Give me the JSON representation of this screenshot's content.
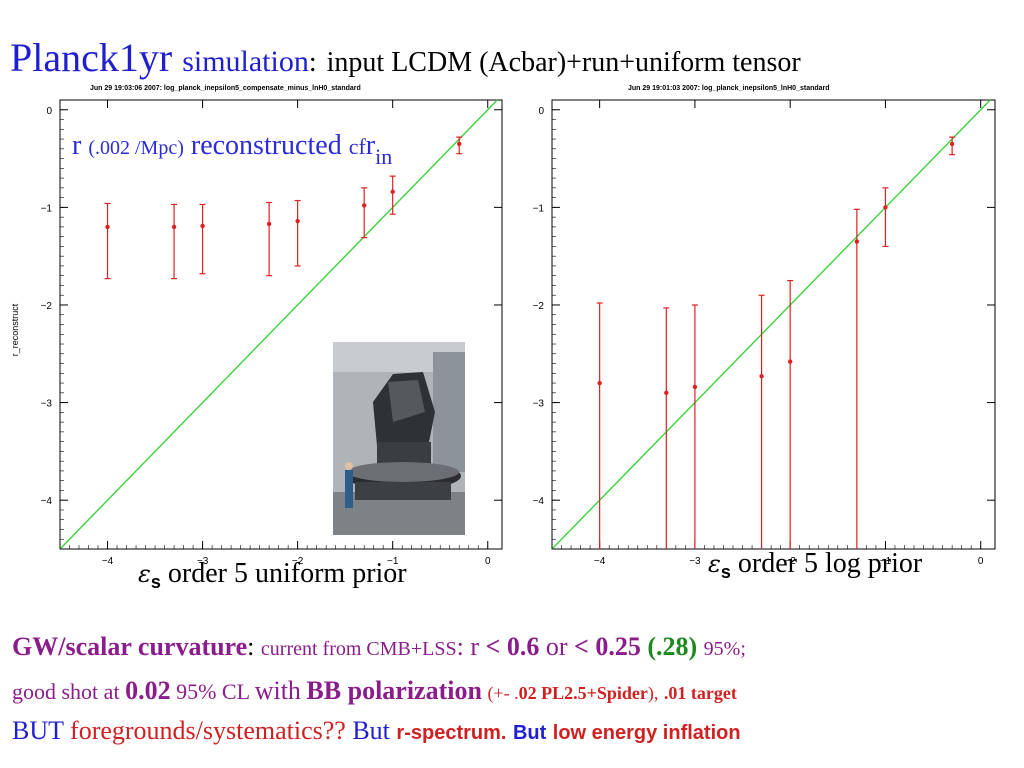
{
  "title": {
    "main": "Planck1yr",
    "sim": "simulation",
    "colon": ":",
    "subtitle": "input LCDM (Acbar)+run+uniform tensor"
  },
  "recon_label": {
    "r": "r",
    "scale": "(.002 /Mpc)",
    "word": "reconstructed",
    "cf": "cf",
    "r_in": "r",
    "sub": "in"
  },
  "photo": {
    "description": "Planck satellite in test facility"
  },
  "prior_left": {
    "eps": "ε",
    "s": "s",
    "text": "order 5 uniform prior"
  },
  "prior_right": {
    "eps": "ε",
    "s": "s",
    "text": "order 5 log prior"
  },
  "chart_data": [
    {
      "type": "scatter",
      "header": "Jun 29 19:03:06 2007: log_planck_inepsilon5_compensate_minus_lnH0_standard",
      "xlabel": "",
      "ylabel": "r_reconstruct",
      "xlim": [
        -4.5,
        0.15
      ],
      "ylim": [
        -4.5,
        0.1
      ],
      "xticks": [
        -4,
        -3,
        -2,
        -1,
        0
      ],
      "yticks": [
        0,
        -1,
        -2,
        -3,
        -4
      ],
      "tick_labels_x": [
        "−4",
        "−3",
        "−2",
        "−1",
        "0"
      ],
      "tick_labels_y": [
        "0",
        "−1",
        "−2",
        "−3",
        "−4"
      ],
      "reference_line": "y = x",
      "points": [
        {
          "x": -4.0,
          "y": -1.2,
          "lo": -1.73,
          "hi": -0.96
        },
        {
          "x": -3.3,
          "y": -1.2,
          "lo": -1.73,
          "hi": -0.97
        },
        {
          "x": -3.0,
          "y": -1.19,
          "lo": -1.68,
          "hi": -0.97
        },
        {
          "x": -2.3,
          "y": -1.17,
          "lo": -1.7,
          "hi": -0.95
        },
        {
          "x": -2.0,
          "y": -1.14,
          "lo": -1.6,
          "hi": -0.93
        },
        {
          "x": -1.3,
          "y": -0.98,
          "lo": -1.31,
          "hi": -0.8
        },
        {
          "x": -1.0,
          "y": -0.84,
          "lo": -1.07,
          "hi": -0.68
        },
        {
          "x": -0.3,
          "y": -0.35,
          "lo": -0.45,
          "hi": -0.28
        }
      ]
    },
    {
      "type": "scatter",
      "header": "Jun 29 19:01:03 2007: log_planck_inepsilon5_lnH0_standard",
      "xlabel": "",
      "ylabel": "",
      "xlim": [
        -4.5,
        0.15
      ],
      "ylim": [
        -4.5,
        0.1
      ],
      "xticks": [
        -4,
        -3,
        -2,
        -1,
        0
      ],
      "yticks": [
        0,
        -1,
        -2,
        -3,
        -4
      ],
      "tick_labels_x": [
        "−4",
        "−3",
        "−2",
        "−1",
        "0"
      ],
      "tick_labels_y": [
        "0",
        "−1",
        "−2",
        "−3",
        "−4"
      ],
      "reference_line": "y = x",
      "points": [
        {
          "x": -4.0,
          "y": -2.8,
          "lo": -4.55,
          "hi": -1.98
        },
        {
          "x": -3.3,
          "y": -2.9,
          "lo": -4.55,
          "hi": -2.03
        },
        {
          "x": -3.0,
          "y": -2.84,
          "lo": -4.55,
          "hi": -2.0
        },
        {
          "x": -2.3,
          "y": -2.73,
          "lo": -4.55,
          "hi": -1.9
        },
        {
          "x": -2.0,
          "y": -2.58,
          "lo": -4.55,
          "hi": -1.75
        },
        {
          "x": -1.3,
          "y": -1.35,
          "lo": -4.55,
          "hi": -1.02
        },
        {
          "x": -1.0,
          "y": -1.0,
          "lo": -1.4,
          "hi": -0.8
        },
        {
          "x": -0.3,
          "y": -0.35,
          "lo": -0.46,
          "hi": -0.28
        }
      ]
    }
  ],
  "bottom": {
    "l1_a": "GW/scalar curvature",
    "l1_b": ":",
    "l1_c": "current from CMB+LSS",
    "l1_d": ": r",
    "l1_e": "< 0.6",
    "l1_f": "or",
    "l1_g": "< 0.25",
    "l1_h": "(.28)",
    "l1_i": "95%;",
    "l2_a": "good shot at",
    "l2_b": "0.02",
    "l2_c": "95% CL",
    "l2_d": "with",
    "l2_e": "BB polarization",
    "l2_f": "(+- .",
    "l2_g": "02 PL2.5+Spider",
    "l2_h": "),",
    "l2_i": ".01 target",
    "l3_a": "BUT",
    "l3_b": "foregrounds/systematics??",
    "l3_c": "But",
    "l3_d": "r-spectrum.",
    "l3_e": "But",
    "l3_f": "low energy inflation"
  }
}
